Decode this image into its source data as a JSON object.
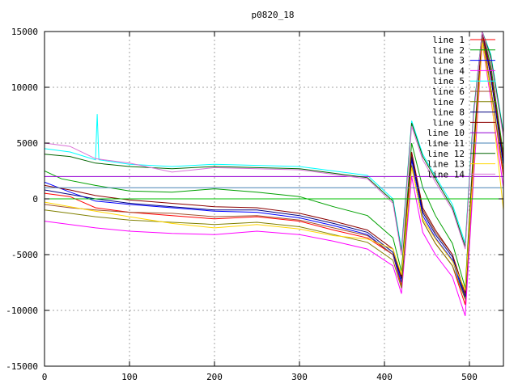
{
  "chart_data": {
    "type": "line",
    "title": "p0820_18",
    "xlabel": "",
    "ylabel": "",
    "xlim": [
      0,
      540
    ],
    "ylim": [
      -15000,
      15000
    ],
    "x_ticks": [
      0,
      100,
      200,
      300,
      400,
      500
    ],
    "y_ticks": [
      -15000,
      -10000,
      -5000,
      0,
      5000,
      10000,
      15000
    ],
    "grid": true,
    "legend_position": "top-right",
    "series": [
      {
        "name": "line 1",
        "color": "#ff0000",
        "values": [
          [
            0,
            500
          ],
          [
            30,
            200
          ],
          [
            60,
            -800
          ],
          [
            100,
            -1200
          ],
          [
            150,
            -1500
          ],
          [
            200,
            -1800
          ],
          [
            250,
            -1600
          ],
          [
            300,
            -2000
          ],
          [
            340,
            -2800
          ],
          [
            380,
            -3500
          ],
          [
            410,
            -5000
          ],
          [
            420,
            -7800
          ],
          [
            432,
            3000
          ],
          [
            445,
            -2000
          ],
          [
            460,
            -4000
          ],
          [
            480,
            -6000
          ],
          [
            495,
            -9500
          ],
          [
            505,
            3000
          ],
          [
            515,
            15000
          ],
          [
            525,
            10000
          ],
          [
            540,
            2000
          ]
        ]
      },
      {
        "name": "line 2",
        "color": "#00a000",
        "values": [
          [
            0,
            2500
          ],
          [
            20,
            1800
          ],
          [
            60,
            1200
          ],
          [
            100,
            700
          ],
          [
            150,
            600
          ],
          [
            200,
            900
          ],
          [
            250,
            600
          ],
          [
            300,
            200
          ],
          [
            340,
            -700
          ],
          [
            380,
            -1500
          ],
          [
            410,
            -3500
          ],
          [
            420,
            -6500
          ],
          [
            432,
            5000
          ],
          [
            445,
            1000
          ],
          [
            460,
            -1500
          ],
          [
            480,
            -4000
          ],
          [
            495,
            -8000
          ],
          [
            505,
            5000
          ],
          [
            515,
            15000
          ],
          [
            525,
            12000
          ],
          [
            540,
            4000
          ]
        ]
      },
      {
        "name": "line 3",
        "color": "#0000ff",
        "values": [
          [
            0,
            1500
          ],
          [
            30,
            600
          ],
          [
            60,
            -200
          ],
          [
            100,
            -500
          ],
          [
            150,
            -800
          ],
          [
            200,
            -1100
          ],
          [
            250,
            -1200
          ],
          [
            300,
            -1700
          ],
          [
            340,
            -2400
          ],
          [
            380,
            -3200
          ],
          [
            410,
            -5000
          ],
          [
            420,
            -7500
          ],
          [
            432,
            3500
          ],
          [
            445,
            -1500
          ],
          [
            460,
            -3500
          ],
          [
            480,
            -5500
          ],
          [
            495,
            -9000
          ],
          [
            505,
            3500
          ],
          [
            515,
            15000
          ],
          [
            525,
            11000
          ],
          [
            540,
            3000
          ]
        ]
      },
      {
        "name": "line 4",
        "color": "#ff00ff",
        "values": [
          [
            0,
            -2000
          ],
          [
            30,
            -2300
          ],
          [
            60,
            -2600
          ],
          [
            100,
            -2900
          ],
          [
            150,
            -3100
          ],
          [
            200,
            -3200
          ],
          [
            250,
            -2900
          ],
          [
            300,
            -3200
          ],
          [
            340,
            -3800
          ],
          [
            380,
            -4500
          ],
          [
            410,
            -6000
          ],
          [
            420,
            -8500
          ],
          [
            432,
            2000
          ],
          [
            445,
            -3000
          ],
          [
            460,
            -5000
          ],
          [
            480,
            -7000
          ],
          [
            495,
            -10500
          ],
          [
            505,
            2000
          ],
          [
            515,
            14000
          ],
          [
            525,
            9000
          ],
          [
            540,
            1000
          ]
        ]
      },
      {
        "name": "line 5",
        "color": "#00ffff",
        "values": [
          [
            0,
            4500
          ],
          [
            30,
            4200
          ],
          [
            60,
            3500
          ],
          [
            62,
            7600
          ],
          [
            64,
            3500
          ],
          [
            100,
            3100
          ],
          [
            150,
            2900
          ],
          [
            200,
            3100
          ],
          [
            250,
            3000
          ],
          [
            300,
            2900
          ],
          [
            340,
            2500
          ],
          [
            380,
            2100
          ],
          [
            410,
            0
          ],
          [
            420,
            -4500
          ],
          [
            432,
            7000
          ],
          [
            445,
            4000
          ],
          [
            460,
            2000
          ],
          [
            480,
            -500
          ],
          [
            495,
            -4000
          ],
          [
            505,
            8000
          ],
          [
            515,
            15000
          ],
          [
            525,
            13000
          ],
          [
            540,
            6000
          ]
        ]
      },
      {
        "name": "line 6",
        "color": "#a0522d",
        "values": [
          [
            0,
            -500
          ],
          [
            30,
            -800
          ],
          [
            60,
            -1000
          ],
          [
            100,
            -1200
          ],
          [
            150,
            -1300
          ],
          [
            200,
            -1600
          ],
          [
            250,
            -1500
          ],
          [
            300,
            -1900
          ],
          [
            340,
            -2600
          ],
          [
            380,
            -3300
          ],
          [
            410,
            -5000
          ],
          [
            420,
            -7000
          ],
          [
            432,
            4000
          ],
          [
            445,
            -1000
          ],
          [
            460,
            -3000
          ],
          [
            480,
            -5000
          ],
          [
            495,
            -8500
          ],
          [
            505,
            4000
          ],
          [
            515,
            15000
          ],
          [
            525,
            11500
          ],
          [
            540,
            3500
          ]
        ]
      },
      {
        "name": "line 7",
        "color": "#808000",
        "values": [
          [
            0,
            -1000
          ],
          [
            30,
            -1300
          ],
          [
            60,
            -1600
          ],
          [
            100,
            -1900
          ],
          [
            150,
            -2100
          ],
          [
            200,
            -2300
          ],
          [
            250,
            -2100
          ],
          [
            300,
            -2500
          ],
          [
            340,
            -3200
          ],
          [
            380,
            -3900
          ],
          [
            410,
            -5500
          ],
          [
            420,
            -8000
          ],
          [
            432,
            3000
          ],
          [
            445,
            -2000
          ],
          [
            460,
            -4000
          ],
          [
            480,
            -6000
          ],
          [
            495,
            -9000
          ],
          [
            505,
            3000
          ],
          [
            515,
            14500
          ],
          [
            525,
            10000
          ],
          [
            540,
            2500
          ]
        ]
      },
      {
        "name": "line 8",
        "color": "#000080",
        "values": [
          [
            0,
            800
          ],
          [
            30,
            400
          ],
          [
            60,
            0
          ],
          [
            100,
            -400
          ],
          [
            150,
            -700
          ],
          [
            200,
            -1000
          ],
          [
            250,
            -1000
          ],
          [
            300,
            -1500
          ],
          [
            340,
            -2200
          ],
          [
            380,
            -3000
          ],
          [
            410,
            -4800
          ],
          [
            420,
            -7200
          ],
          [
            432,
            3800
          ],
          [
            445,
            -1200
          ],
          [
            460,
            -3200
          ],
          [
            480,
            -5200
          ],
          [
            495,
            -8800
          ],
          [
            505,
            3800
          ],
          [
            515,
            15000
          ],
          [
            525,
            11000
          ],
          [
            540,
            3200
          ]
        ]
      },
      {
        "name": "line 9",
        "color": "#8b0000",
        "values": [
          [
            0,
            1200
          ],
          [
            30,
            800
          ],
          [
            60,
            300
          ],
          [
            100,
            -100
          ],
          [
            150,
            -400
          ],
          [
            200,
            -700
          ],
          [
            250,
            -800
          ],
          [
            300,
            -1300
          ],
          [
            340,
            -2000
          ],
          [
            380,
            -2800
          ],
          [
            410,
            -4500
          ],
          [
            420,
            -7000
          ],
          [
            432,
            4200
          ],
          [
            445,
            -800
          ],
          [
            460,
            -2800
          ],
          [
            480,
            -5000
          ],
          [
            495,
            -8500
          ],
          [
            505,
            4200
          ],
          [
            515,
            15000
          ],
          [
            525,
            11500
          ],
          [
            540,
            3600
          ]
        ]
      },
      {
        "name": "line 10",
        "color": "#9400d3",
        "values": [
          [
            0,
            2000
          ],
          [
            100,
            2000
          ],
          [
            200,
            2000
          ],
          [
            300,
            2000
          ],
          [
            400,
            2000
          ],
          [
            500,
            2000
          ],
          [
            540,
            2000
          ]
        ]
      },
      {
        "name": "line 11",
        "color": "#4682b4",
        "values": [
          [
            0,
            1000
          ],
          [
            100,
            1000
          ],
          [
            200,
            1000
          ],
          [
            300,
            1000
          ],
          [
            400,
            1000
          ],
          [
            500,
            1000
          ],
          [
            540,
            1000
          ]
        ]
      },
      {
        "name": "line 12",
        "color": "#006400",
        "values": [
          [
            0,
            4000
          ],
          [
            30,
            3800
          ],
          [
            60,
            3200
          ],
          [
            100,
            2900
          ],
          [
            150,
            2700
          ],
          [
            200,
            2900
          ],
          [
            250,
            2800
          ],
          [
            300,
            2700
          ],
          [
            340,
            2300
          ],
          [
            380,
            1900
          ],
          [
            410,
            -200
          ],
          [
            420,
            -4800
          ],
          [
            432,
            6800
          ],
          [
            445,
            3800
          ],
          [
            460,
            1800
          ],
          [
            480,
            -800
          ],
          [
            495,
            -4300
          ],
          [
            505,
            7800
          ],
          [
            515,
            15000
          ],
          [
            525,
            12800
          ],
          [
            540,
            5800
          ]
        ]
      },
      {
        "name": "line 13",
        "color": "#ffd700",
        "values": [
          [
            0,
            -300
          ],
          [
            30,
            -700
          ],
          [
            60,
            -1100
          ],
          [
            100,
            -1600
          ],
          [
            150,
            -2200
          ],
          [
            200,
            -2600
          ],
          [
            250,
            -2300
          ],
          [
            300,
            -2700
          ],
          [
            340,
            -3300
          ],
          [
            380,
            -3600
          ],
          [
            410,
            -4500
          ],
          [
            420,
            -6800
          ],
          [
            432,
            2800
          ],
          [
            445,
            -1800
          ],
          [
            460,
            -3600
          ],
          [
            480,
            -5600
          ],
          [
            495,
            -8200
          ],
          [
            505,
            3200
          ],
          [
            515,
            14000
          ],
          [
            525,
            9500
          ],
          [
            540,
            -1000
          ]
        ]
      },
      {
        "name": "line 14",
        "color": "#da70d6",
        "values": [
          [
            0,
            5000
          ],
          [
            30,
            4700
          ],
          [
            60,
            3600
          ],
          [
            100,
            3200
          ],
          [
            150,
            2400
          ],
          [
            200,
            2800
          ],
          [
            250,
            2700
          ],
          [
            300,
            2600
          ],
          [
            340,
            2200
          ],
          [
            380,
            1800
          ],
          [
            410,
            -400
          ],
          [
            420,
            -5000
          ],
          [
            432,
            6500
          ],
          [
            445,
            3500
          ],
          [
            460,
            1500
          ],
          [
            480,
            -1000
          ],
          [
            495,
            -4500
          ],
          [
            505,
            7500
          ],
          [
            515,
            15000
          ],
          [
            525,
            12500
          ],
          [
            540,
            5500
          ]
        ]
      },
      {
        "name": "",
        "color": "#00c000",
        "values": [
          [
            0,
            0
          ],
          [
            100,
            0
          ],
          [
            200,
            0
          ],
          [
            300,
            0
          ],
          [
            400,
            0
          ],
          [
            500,
            0
          ],
          [
            540,
            0
          ]
        ]
      }
    ]
  }
}
